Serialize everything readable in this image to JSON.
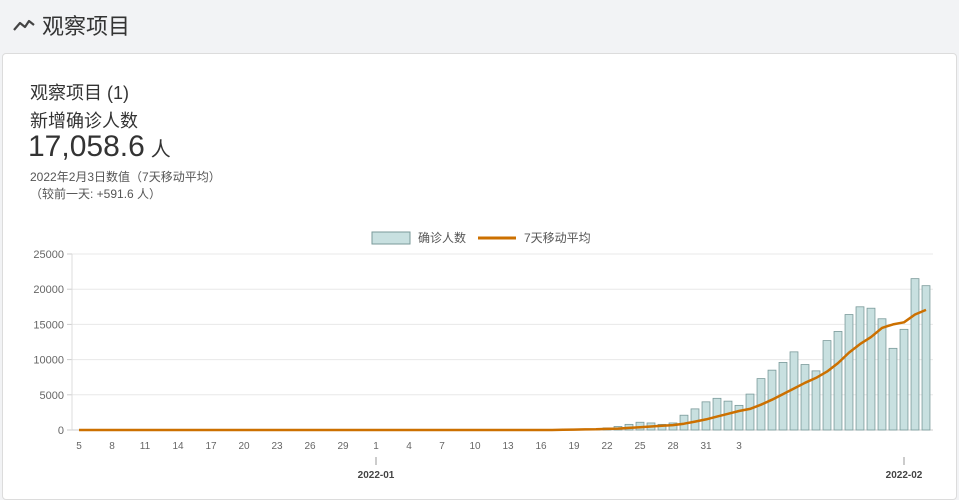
{
  "header": {
    "title": "观察项目",
    "icon": "trend-line-icon"
  },
  "card": {
    "title": "观察项目 (1)",
    "metric_title": "新增确诊人数",
    "metric_value": "17,058.6",
    "metric_unit": "人",
    "note_line1": "2022年2月3日数值（7天移动平均）",
    "note_line2": "（较前一天: +591.6 人）"
  },
  "colors": {
    "bar_fill": "#c8e0e0",
    "bar_stroke": "#7a9a9a",
    "line": "#cc7000"
  },
  "chart_data": {
    "type": "bar",
    "title": "",
    "legend": [
      "确诊人数",
      "7天移动平均"
    ],
    "legend_placement": "top-center",
    "ylim": [
      0,
      25000
    ],
    "y_ticks": [
      "0",
      "5000",
      "10000",
      "15000",
      "20000",
      "25000"
    ],
    "x_ticks": [
      "5",
      "8",
      "11",
      "14",
      "17",
      "20",
      "23",
      "26",
      "29",
      "1",
      "4",
      "7",
      "10",
      "13",
      "16",
      "19",
      "22",
      "25",
      "28",
      "31",
      "3"
    ],
    "x_major_labels": [
      "2022-01",
      "2022-02"
    ],
    "grid": true,
    "series": [
      {
        "name": "确诊人数",
        "type": "bar",
        "values": [
          0,
          0,
          0,
          0,
          0,
          0,
          0,
          0,
          0,
          0,
          0,
          0,
          0,
          0,
          0,
          0,
          0,
          0,
          0,
          0,
          0,
          0,
          0,
          0,
          0,
          0,
          0,
          0,
          0,
          0,
          0,
          0,
          0,
          0,
          0,
          0,
          0,
          0,
          0,
          0,
          0,
          0,
          0,
          0,
          20,
          10,
          30,
          50,
          300,
          500,
          800,
          1100,
          1000,
          800,
          1000,
          2100,
          3000,
          4000,
          4500,
          4100,
          3500,
          5100,
          7300,
          8500,
          9600,
          11100,
          9300,
          8400,
          12700,
          14000,
          16400,
          17500,
          17300,
          15800,
          11600,
          14300,
          21500,
          20500
        ]
      },
      {
        "name": "7天移动平均",
        "type": "line",
        "values": [
          0,
          0,
          0,
          0,
          0,
          0,
          0,
          0,
          0,
          0,
          0,
          0,
          0,
          0,
          0,
          0,
          0,
          0,
          0,
          0,
          0,
          0,
          0,
          0,
          0,
          0,
          0,
          0,
          0,
          0,
          0,
          0,
          0,
          0,
          0,
          0,
          0,
          0,
          0,
          0,
          0,
          0,
          0,
          0,
          30,
          50,
          80,
          100,
          150,
          200,
          300,
          400,
          500,
          600,
          700,
          900,
          1200,
          1500,
          1900,
          2300,
          2700,
          3000,
          3600,
          4300,
          5100,
          5900,
          6700,
          7400,
          8300,
          9500,
          11000,
          12200,
          13200,
          14500,
          15000,
          15300,
          16400,
          17058.6
        ]
      }
    ]
  }
}
